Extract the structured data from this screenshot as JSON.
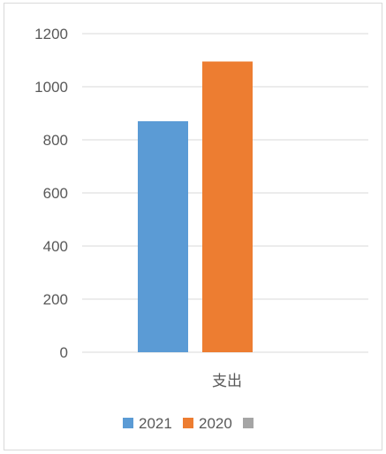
{
  "chart_data": {
    "type": "bar",
    "title": "",
    "xlabel": "",
    "ylabel": "",
    "categories": [
      "支出"
    ],
    "ylim": [
      0,
      1200
    ],
    "yticks": [
      0,
      200,
      400,
      600,
      800,
      1000,
      1200
    ],
    "grid": true,
    "legend_position": "bottom",
    "series": [
      {
        "name": "2021",
        "values": [
          870
        ],
        "color": "#5B9BD5"
      },
      {
        "name": "2020",
        "values": [
          1095
        ],
        "color": "#ED7D31"
      },
      {
        "name": "",
        "values": [
          null
        ],
        "color": "#A5A5A5"
      }
    ]
  }
}
